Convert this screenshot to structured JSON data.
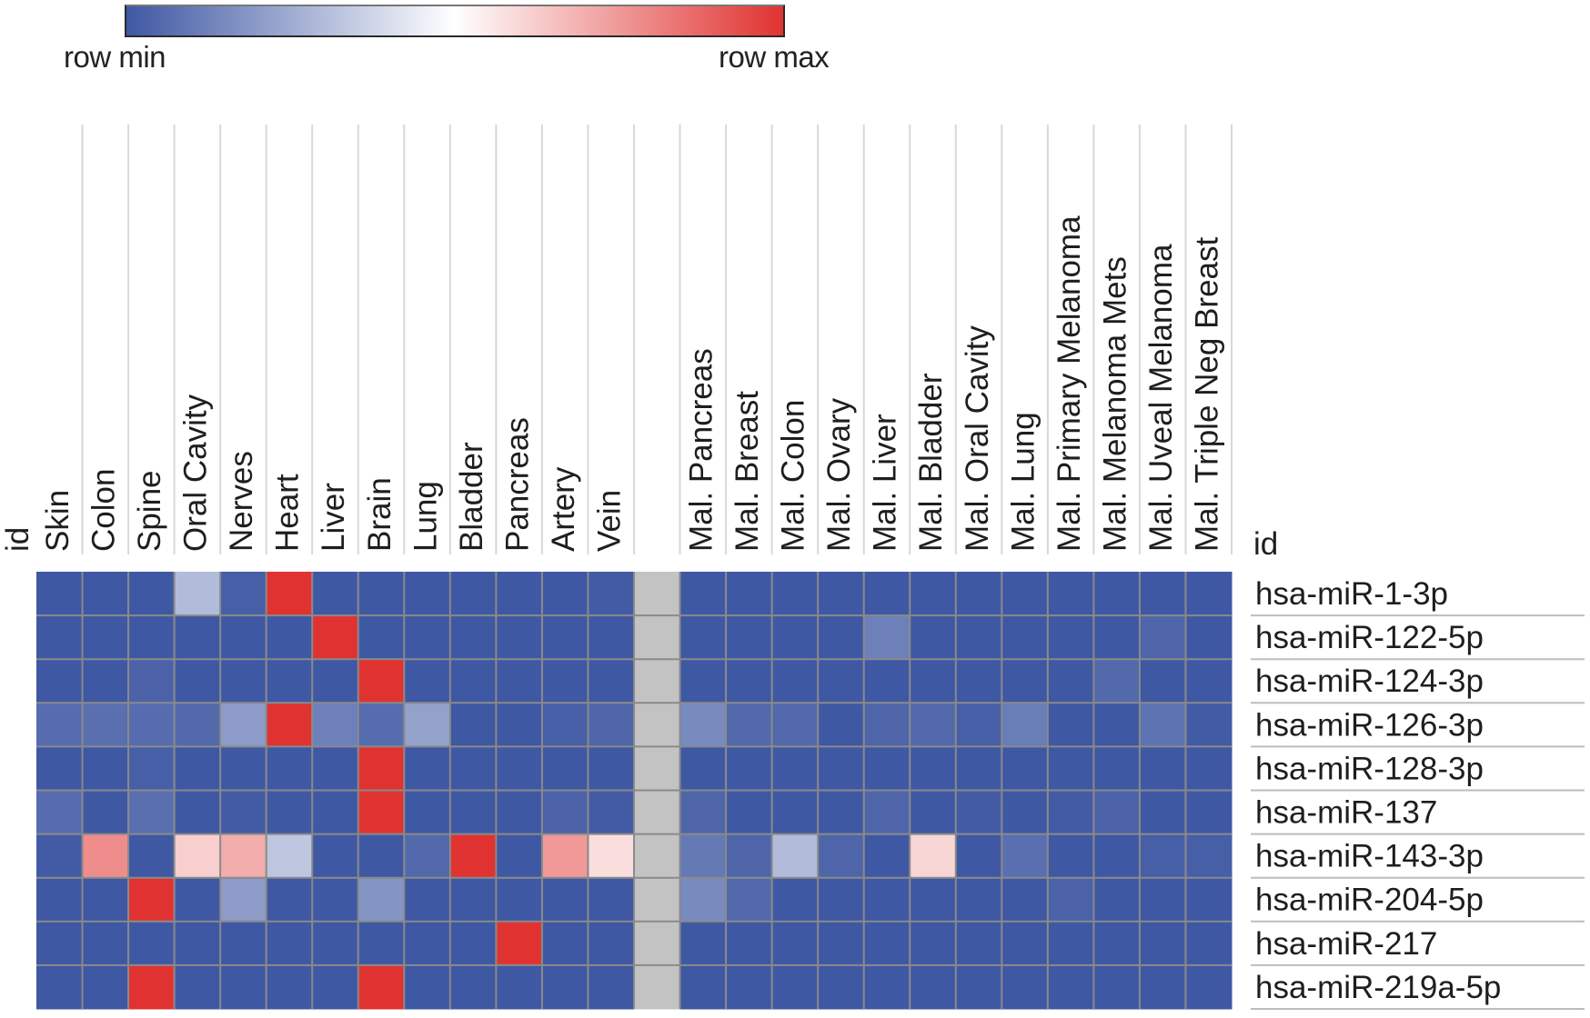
{
  "legend": {
    "min_label": "row min",
    "max_label": "row max",
    "colors": {
      "min": "#3F58A3",
      "mid": "#FFFFFF",
      "max": "#E03331"
    }
  },
  "colors": {
    "missing": "#C3C3C3",
    "grid": "#8A8A8A",
    "header_line": "#D8D8D8"
  },
  "chart_data": {
    "type": "heatmap",
    "title": "",
    "scale": "row-normalized (0 = row min, 1 = row max)",
    "id_label": "id",
    "row_id_label": "id",
    "columns": [
      "Skin",
      "Colon",
      "Spine",
      "Oral Cavity",
      "Nerves",
      "Heart",
      "Liver",
      "Brain",
      "Lung",
      "Bladder",
      "Pancreas",
      "Artery",
      "Vein",
      "",
      "Mal. Pancreas",
      "Mal. Breast",
      "Mal. Colon",
      "Mal. Ovary",
      "Mal. Liver",
      "Mal. Bladder",
      "Mal. Oral Cavity",
      "Mal. Lung",
      "Mal. Primary Melanoma",
      "Mal. Melanoma Mets",
      "Mal. Uveal Melanoma",
      "Mal. Triple Neg Breast"
    ],
    "rows": [
      "hsa-miR-1-3p",
      "hsa-miR-122-5p",
      "hsa-miR-124-3p",
      "hsa-miR-126-3p",
      "hsa-miR-128-3p",
      "hsa-miR-137",
      "hsa-miR-143-3p",
      "hsa-miR-204-5p",
      "hsa-miR-217",
      "hsa-miR-219a-5p"
    ],
    "values": [
      [
        0,
        0,
        0,
        0.3,
        0.02,
        1,
        0,
        0,
        0,
        0,
        0,
        0,
        0.01,
        null,
        0,
        0,
        0,
        0,
        0,
        0,
        0,
        0,
        0,
        0,
        0,
        0
      ],
      [
        0,
        0,
        0,
        0,
        0,
        0,
        1,
        0,
        0,
        0,
        0,
        0,
        0,
        null,
        0,
        0,
        0,
        0,
        0.12,
        0,
        0,
        0,
        0,
        0,
        0.04,
        0
      ],
      [
        0,
        0,
        0.03,
        0,
        0,
        0,
        0,
        1,
        0,
        0,
        0,
        0,
        0,
        null,
        0,
        0,
        0,
        0,
        0,
        0,
        0,
        0,
        0,
        0.05,
        0,
        0
      ],
      [
        0.06,
        0.07,
        0.06,
        0.05,
        0.2,
        1,
        0.12,
        0.06,
        0.22,
        0,
        0,
        0.02,
        0.04,
        null,
        0.15,
        0.05,
        0.05,
        0,
        0.04,
        0.05,
        0.02,
        0.11,
        0,
        0,
        0.08,
        0.01
      ],
      [
        0,
        0,
        0.02,
        0,
        0,
        0,
        0,
        1,
        0,
        0,
        0,
        0,
        0,
        null,
        0,
        0,
        0,
        0,
        0,
        0,
        0,
        0,
        0,
        0,
        0,
        0
      ],
      [
        0.06,
        0,
        0.07,
        0,
        0.01,
        0,
        0,
        1,
        0,
        0,
        0,
        0.03,
        0.01,
        null,
        0.04,
        0,
        0,
        0,
        0.04,
        0,
        0.01,
        0,
        0.01,
        0.03,
        0,
        0
      ],
      [
        0.01,
        0.78,
        0,
        0.62,
        0.7,
        0.33,
        0,
        0,
        0.05,
        1,
        0,
        0.75,
        0.58,
        null,
        0.1,
        0.04,
        0.3,
        0.04,
        0,
        0.6,
        0,
        0.07,
        0,
        0,
        0.02,
        0.02
      ],
      [
        0,
        0,
        1,
        0,
        0.2,
        0,
        0,
        0.18,
        0,
        0,
        0,
        0,
        0,
        null,
        0.15,
        0.05,
        0,
        0,
        0,
        0,
        0,
        0,
        0.03,
        0,
        0,
        0
      ],
      [
        0,
        0,
        0,
        0,
        0,
        0,
        0,
        0,
        0,
        0,
        1,
        0,
        0,
        null,
        0,
        0,
        0,
        0,
        0,
        0,
        0,
        0,
        0,
        0,
        0,
        0
      ],
      [
        0,
        0,
        1,
        0,
        0,
        0,
        0,
        1,
        0,
        0,
        0,
        0,
        0,
        null,
        0,
        0,
        0,
        0,
        0,
        0,
        0,
        0,
        0,
        0,
        0,
        0
      ]
    ]
  }
}
